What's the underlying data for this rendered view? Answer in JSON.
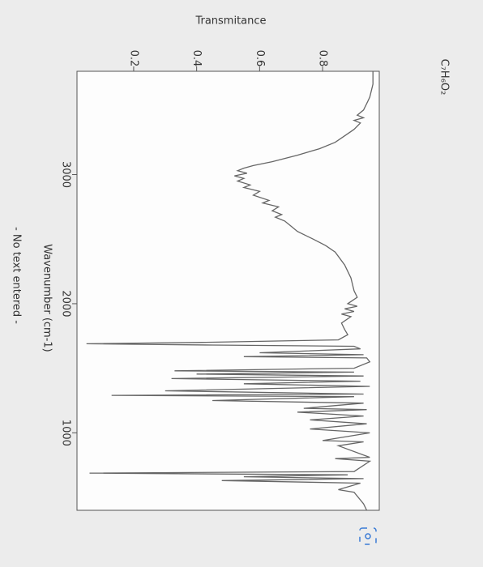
{
  "chart_data": {
    "type": "line",
    "title": "C₇H₆O₂",
    "xlabel": "Wavenumber (cm-1)",
    "ylabel": "Transmitance",
    "note": "- No text entered -",
    "xlim": [
      3800,
      400
    ],
    "xticks": [
      3000,
      2000,
      1000
    ],
    "ylim": [
      0.02,
      0.98
    ],
    "yticks": [
      0.2,
      0.4,
      0.6,
      0.8
    ],
    "color": "#666666",
    "x": [
      3800,
      3700,
      3600,
      3550,
      3500,
      3460,
      3440,
      3420,
      3400,
      3350,
      3300,
      3250,
      3200,
      3150,
      3100,
      3070,
      3050,
      3030,
      3010,
      2990,
      2970,
      2950,
      2920,
      2900,
      2870,
      2840,
      2800,
      2780,
      2750,
      2720,
      2690,
      2670,
      2640,
      2600,
      2560,
      2500,
      2450,
      2400,
      2300,
      2200,
      2100,
      2050,
      2000,
      1980,
      1960,
      1940,
      1920,
      1900,
      1850,
      1800,
      1760,
      1720,
      1700,
      1690,
      1680,
      1670,
      1650,
      1620,
      1605,
      1590,
      1580,
      1550,
      1500,
      1480,
      1470,
      1455,
      1440,
      1420,
      1400,
      1380,
      1360,
      1325,
      1300,
      1290,
      1280,
      1250,
      1230,
      1190,
      1180,
      1160,
      1130,
      1100,
      1070,
      1030,
      1000,
      940,
      930,
      900,
      810,
      800,
      780,
      700,
      688,
      675,
      660,
      645,
      630,
      610,
      560,
      540,
      450,
      400
    ],
    "values": [
      0.96,
      0.96,
      0.95,
      0.94,
      0.93,
      0.91,
      0.93,
      0.9,
      0.92,
      0.9,
      0.87,
      0.84,
      0.79,
      0.72,
      0.64,
      0.58,
      0.55,
      0.53,
      0.56,
      0.52,
      0.55,
      0.53,
      0.57,
      0.55,
      0.6,
      0.58,
      0.63,
      0.61,
      0.66,
      0.64,
      0.67,
      0.65,
      0.68,
      0.7,
      0.72,
      0.77,
      0.81,
      0.84,
      0.87,
      0.89,
      0.9,
      0.91,
      0.88,
      0.91,
      0.87,
      0.9,
      0.86,
      0.89,
      0.86,
      0.87,
      0.88,
      0.85,
      0.4,
      0.05,
      0.45,
      0.9,
      0.92,
      0.6,
      0.93,
      0.55,
      0.94,
      0.95,
      0.9,
      0.33,
      0.9,
      0.4,
      0.93,
      0.32,
      0.92,
      0.55,
      0.95,
      0.3,
      0.93,
      0.13,
      0.9,
      0.45,
      0.93,
      0.74,
      0.94,
      0.72,
      0.93,
      0.76,
      0.94,
      0.76,
      0.95,
      0.8,
      0.93,
      0.85,
      0.95,
      0.84,
      0.95,
      0.9,
      0.06,
      0.88,
      0.55,
      0.93,
      0.48,
      0.92,
      0.85,
      0.9,
      0.93,
      0.94
    ]
  }
}
